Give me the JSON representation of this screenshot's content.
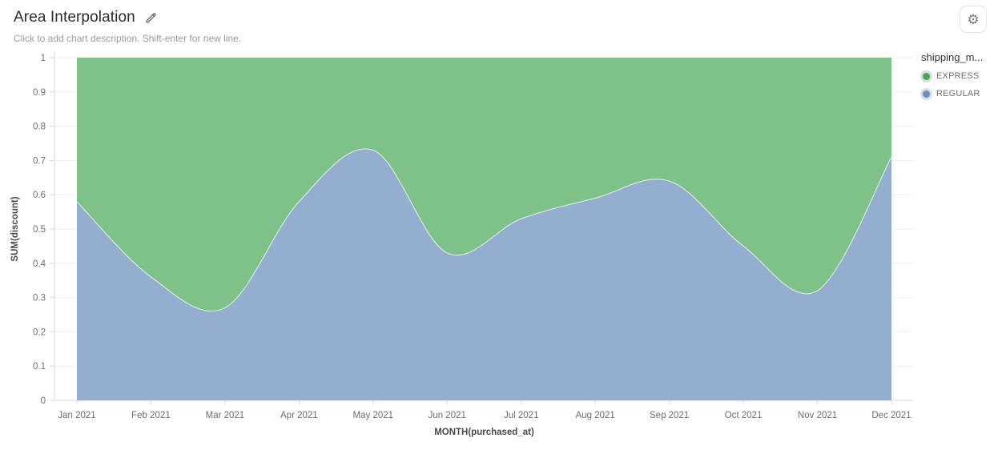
{
  "header": {
    "title": "Area Interpolation",
    "subtitle": "Click to add chart description. Shift-enter for new line."
  },
  "toolbar": {
    "settings_icon": "gear-icon",
    "edit_icon": "pencil-icon"
  },
  "legend": {
    "title": "shipping_m...",
    "items": [
      {
        "label": "EXPRESS",
        "color": "#45A858"
      },
      {
        "label": "REGULAR",
        "color": "#6A8EC0"
      }
    ]
  },
  "chart_data": {
    "type": "area",
    "stacked": true,
    "normalized": true,
    "interpolation": "smooth",
    "title": "Area Interpolation",
    "xlabel": "MONTH(purchased_at)",
    "ylabel": "SUM(discount)",
    "ylim": [
      0,
      1
    ],
    "y_ticks": [
      "0",
      "0.1",
      "0.2",
      "0.3",
      "0.4",
      "0.5",
      "0.6",
      "0.7",
      "0.8",
      "0.9",
      "1"
    ],
    "grid": true,
    "legend_position": "right",
    "categories": [
      "Jan 2021",
      "Feb 2021",
      "Mar 2021",
      "Apr 2021",
      "May 2021",
      "Jun 2021",
      "Jul 2021",
      "Aug 2021",
      "Sep 2021",
      "Oct 2021",
      "Nov 2021",
      "Dec 2021"
    ],
    "series": [
      {
        "name": "REGULAR",
        "area_color": "#93AECE",
        "values": [
          0.58,
          0.36,
          0.27,
          0.58,
          0.73,
          0.43,
          0.53,
          0.59,
          0.64,
          0.45,
          0.32,
          0.71
        ]
      },
      {
        "name": "EXPRESS",
        "area_color": "#7EC289",
        "values": [
          0.42,
          0.64,
          0.73,
          0.42,
          0.27,
          0.57,
          0.47,
          0.41,
          0.36,
          0.55,
          0.68,
          0.29
        ]
      }
    ],
    "colors": {
      "gridline": "#f0f0f0",
      "axis_line": "#d9d9d9",
      "tick_text": "#6e6e6e",
      "axis_title_text": "#4a4a4a"
    }
  }
}
